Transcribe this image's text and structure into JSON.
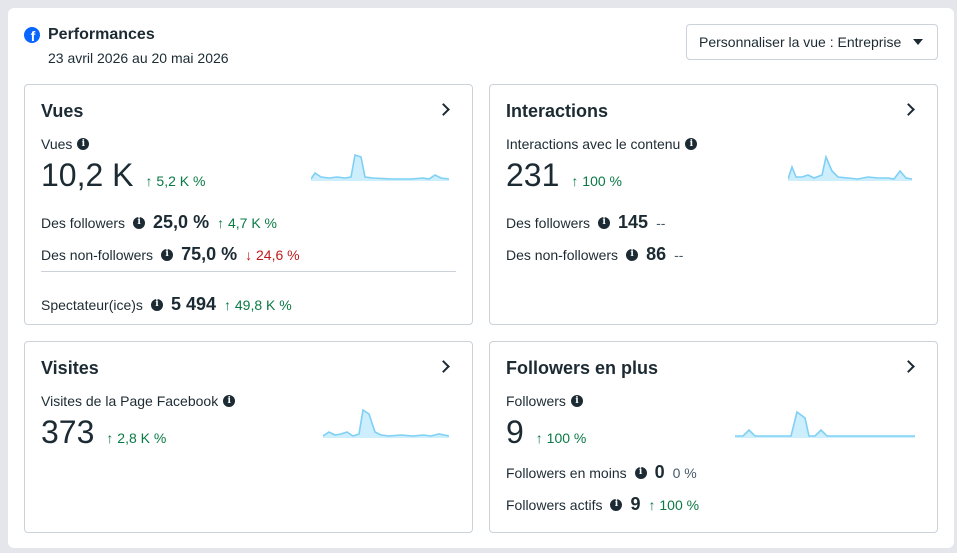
{
  "header": {
    "title": "Performances",
    "date_range": "23 avril 2026 au 20 mai 2026",
    "view_select": "Personnaliser la vue : Entreprise",
    "brand_color": "#0866ff"
  },
  "cards": {
    "views": {
      "title": "Vues",
      "metric_label": "Vues",
      "value": "10,2 K",
      "delta": "↑ 5,2 K %",
      "followers_label": "Des followers",
      "followers_value": "25,0 %",
      "followers_delta": "↑ 4,7 K %",
      "nonfollowers_label": "Des non-followers",
      "nonfollowers_value": "75,0 %",
      "nonfollowers_delta": "↓ 24,6 %",
      "viewers_label": "Spectateur(ice)s",
      "viewers_value": "5 494",
      "viewers_delta": "↑ 49,8 K %"
    },
    "interactions": {
      "title": "Interactions",
      "metric_label": "Interactions avec le contenu",
      "value": "231",
      "delta": "↑ 100 %",
      "followers_label": "Des followers",
      "followers_value": "145",
      "followers_delta": "--",
      "nonfollowers_label": "Des non-followers",
      "nonfollowers_value": "86",
      "nonfollowers_delta": "--"
    },
    "visits": {
      "title": "Visites",
      "metric_label": "Visites de la Page Facebook",
      "value": "373",
      "delta": "↑ 2,8 K %"
    },
    "new_followers": {
      "title": "Followers en plus",
      "metric_label": "Followers",
      "value": "9",
      "delta": "↑ 100 %",
      "lost_label": "Followers en moins",
      "lost_value": "0",
      "lost_delta": "0 %",
      "active_label": "Followers actifs",
      "active_value": "9",
      "active_delta": "↑ 100 %"
    }
  },
  "colors": {
    "positive": "#0a7a45",
    "negative": "#c11a1a",
    "sparkline_stroke": "#7fd0f5",
    "sparkline_fill": "#cdeefc"
  },
  "icons": [
    "facebook-icon",
    "info-icon",
    "chevron-right-icon",
    "caret-down-icon"
  ]
}
